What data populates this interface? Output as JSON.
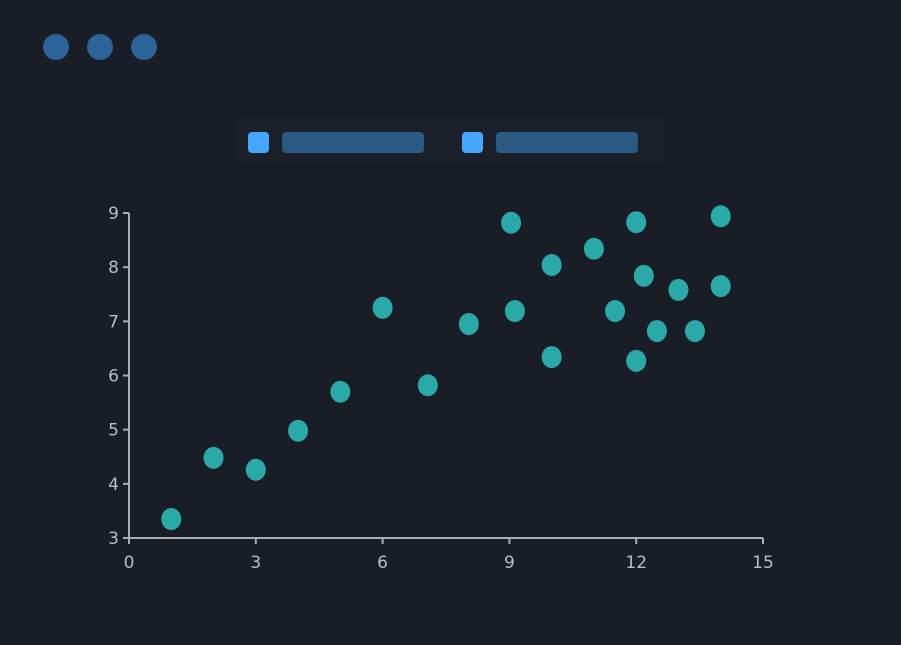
{
  "window_controls": [
    "dot",
    "dot",
    "dot"
  ],
  "colors": {
    "background": "#181d26",
    "point": "#2aa9a9",
    "axis": "#a9adb8",
    "legend_swatch": "#45a6ff",
    "control_dot": "#2a6499"
  },
  "chart_data": {
    "type": "scatter",
    "title": "",
    "xlabel": "",
    "ylabel": "",
    "xlim": [
      0,
      15
    ],
    "ylim": [
      3,
      9
    ],
    "x_ticks": [
      "0",
      "3",
      "6",
      "9",
      "12",
      "15"
    ],
    "y_ticks": [
      "3",
      "4",
      "5",
      "6",
      "7",
      "8",
      "9"
    ],
    "grid": false,
    "legend_placement": "top",
    "series": [
      {
        "points": [
          [
            1,
            3.35
          ],
          [
            2,
            4.48
          ],
          [
            3,
            4.26
          ],
          [
            4,
            4.98
          ],
          [
            5,
            5.7
          ],
          [
            6,
            7.25
          ],
          [
            7.07,
            5.82
          ],
          [
            8.04,
            6.95
          ],
          [
            9.04,
            8.82
          ],
          [
            9.13,
            7.19
          ],
          [
            10,
            8.04
          ],
          [
            10,
            6.34
          ],
          [
            11,
            8.34
          ],
          [
            11.5,
            7.19
          ],
          [
            12,
            8.83
          ],
          [
            12.18,
            7.84
          ],
          [
            12,
            6.27
          ],
          [
            12.49,
            6.82
          ],
          [
            13,
            7.58
          ],
          [
            13.39,
            6.82
          ],
          [
            14,
            8.94
          ],
          [
            14,
            7.65
          ]
        ]
      }
    ]
  }
}
